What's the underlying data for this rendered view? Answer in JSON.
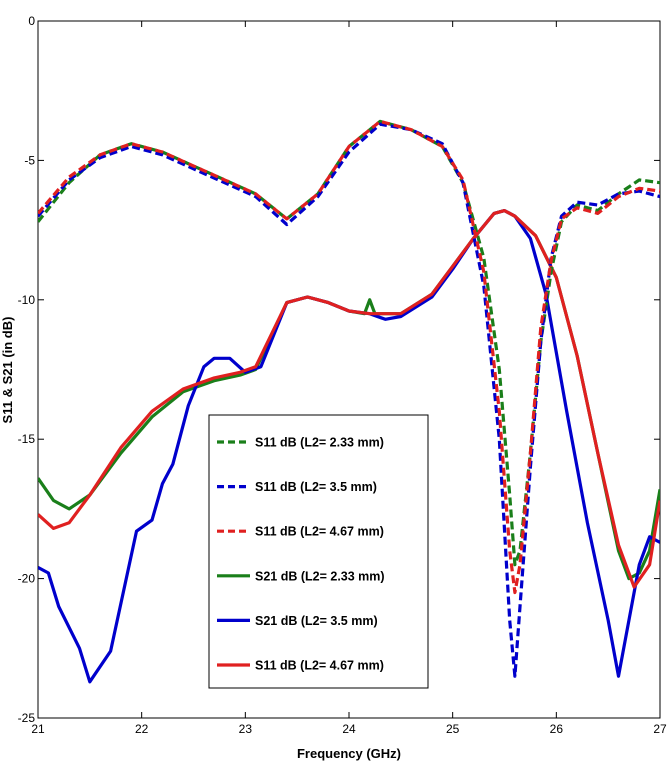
{
  "chart_data": {
    "type": "line",
    "title": "",
    "xlabel": "Frequency (GHz)",
    "ylabel": "S11 & S21 (in dB)",
    "xlim": [
      21,
      27
    ],
    "ylim": [
      -25,
      0
    ],
    "xticks": [
      21,
      22,
      23,
      24,
      25,
      26,
      27
    ],
    "yticks": [
      0,
      -5,
      -10,
      -15,
      -20,
      -25
    ],
    "grid": false,
    "legend_position": "lower-center",
    "series": [
      {
        "name": "S11 dB (L2= 2.33 mm)",
        "color": "#1a7f1a",
        "style": "dashed",
        "x": [
          21,
          21.3,
          21.6,
          21.9,
          22.2,
          22.5,
          22.8,
          23.1,
          23.4,
          23.7,
          24.0,
          24.3,
          24.6,
          24.9,
          25.1,
          25.3,
          25.45,
          25.55,
          25.6,
          25.65,
          25.75,
          25.85,
          25.95,
          26.05,
          26.2,
          26.4,
          26.6,
          26.8,
          27
        ],
        "y": [
          -7.2,
          -5.8,
          -4.8,
          -4.4,
          -4.7,
          -5.2,
          -5.7,
          -6.2,
          -7.1,
          -6.2,
          -4.5,
          -3.6,
          -3.9,
          -4.5,
          -5.8,
          -8.5,
          -12.5,
          -17.0,
          -19.5,
          -19.0,
          -15.5,
          -11.5,
          -9.0,
          -7.2,
          -6.6,
          -6.8,
          -6.2,
          -5.7,
          -5.8
        ]
      },
      {
        "name": "S11 dB (L2= 3.5 mm)",
        "color": "#0000cc",
        "style": "dashed",
        "x": [
          21,
          21.3,
          21.6,
          21.9,
          22.2,
          22.5,
          22.8,
          23.1,
          23.4,
          23.7,
          24.0,
          24.3,
          24.6,
          24.9,
          25.1,
          25.3,
          25.45,
          25.55,
          25.6,
          25.65,
          25.75,
          25.85,
          25.95,
          26.05,
          26.2,
          26.4,
          26.6,
          26.8,
          27
        ],
        "y": [
          -7.0,
          -5.7,
          -4.9,
          -4.5,
          -4.8,
          -5.3,
          -5.8,
          -6.3,
          -7.3,
          -6.3,
          -4.7,
          -3.7,
          -3.9,
          -4.4,
          -5.8,
          -9.5,
          -15.0,
          -21.5,
          -23.5,
          -21.0,
          -16.0,
          -11.5,
          -8.5,
          -7.0,
          -6.5,
          -6.6,
          -6.2,
          -6.1,
          -6.3
        ]
      },
      {
        "name": "S11 dB (L2= 4.67 mm)",
        "color": "#e02020",
        "style": "dashed",
        "x": [
          21,
          21.3,
          21.6,
          21.9,
          22.2,
          22.5,
          22.8,
          23.1,
          23.4,
          23.7,
          24.0,
          24.3,
          24.6,
          24.9,
          25.1,
          25.3,
          25.45,
          25.55,
          25.6,
          25.65,
          25.75,
          25.85,
          25.95,
          26.05,
          26.2,
          26.4,
          26.6,
          26.8,
          27
        ],
        "y": [
          -6.9,
          -5.6,
          -4.8,
          -4.4,
          -4.7,
          -5.2,
          -5.7,
          -6.2,
          -7.1,
          -6.2,
          -4.5,
          -3.6,
          -3.9,
          -4.5,
          -5.7,
          -9.0,
          -14.0,
          -19.0,
          -20.5,
          -19.5,
          -15.5,
          -11.0,
          -8.6,
          -7.1,
          -6.7,
          -6.9,
          -6.3,
          -6.0,
          -6.1
        ]
      },
      {
        "name": "S21 dB (L2= 2.33 mm)",
        "color": "#1a7f1a",
        "style": "solid",
        "x": [
          21,
          21.15,
          21.3,
          21.5,
          21.8,
          22.1,
          22.4,
          22.7,
          22.95,
          23.1,
          23.4,
          23.6,
          23.8,
          24.0,
          24.15,
          24.2,
          24.25,
          24.5,
          24.8,
          25.0,
          25.2,
          25.4,
          25.5,
          25.6,
          25.8,
          26.0,
          26.2,
          26.4,
          26.6,
          26.7,
          26.8,
          26.9,
          27
        ],
        "y": [
          -16.4,
          -17.2,
          -17.5,
          -17.0,
          -15.5,
          -14.2,
          -13.3,
          -12.9,
          -12.7,
          -12.5,
          -10.1,
          -9.9,
          -10.1,
          -10.4,
          -10.5,
          -10.0,
          -10.5,
          -10.5,
          -9.8,
          -8.8,
          -7.8,
          -6.9,
          -6.8,
          -7.0,
          -7.7,
          -9.2,
          -12.0,
          -15.5,
          -19.0,
          -20.0,
          -19.8,
          -19.0,
          -16.8
        ]
      },
      {
        "name": "S21 dB (L2= 3.5 mm)",
        "color": "#0000cc",
        "style": "solid",
        "x": [
          21,
          21.1,
          21.2,
          21.4,
          21.5,
          21.7,
          21.95,
          22.1,
          22.2,
          22.3,
          22.45,
          22.6,
          22.7,
          22.85,
          23.0,
          23.15,
          23.4,
          23.6,
          23.8,
          24.0,
          24.2,
          24.35,
          24.5,
          24.8,
          25.0,
          25.2,
          25.4,
          25.5,
          25.6,
          25.75,
          25.9,
          26.1,
          26.3,
          26.5,
          26.6,
          26.7,
          26.8,
          26.9,
          27
        ],
        "y": [
          -19.6,
          -19.8,
          -21.0,
          -22.5,
          -23.7,
          -22.6,
          -18.3,
          -17.9,
          -16.6,
          -15.9,
          -13.8,
          -12.4,
          -12.1,
          -12.1,
          -12.6,
          -12.4,
          -10.1,
          -9.9,
          -10.1,
          -10.4,
          -10.5,
          -10.7,
          -10.6,
          -9.9,
          -8.9,
          -7.8,
          -6.9,
          -6.8,
          -7.0,
          -7.8,
          -9.8,
          -14.0,
          -18.0,
          -21.5,
          -23.5,
          -21.5,
          -19.5,
          -18.5,
          -18.7
        ]
      },
      {
        "name": "S11 dB (L2= 4.67 mm)",
        "color": "#e02020",
        "style": "solid",
        "x": [
          21,
          21.15,
          21.3,
          21.5,
          21.8,
          22.1,
          22.4,
          22.7,
          22.95,
          23.1,
          23.4,
          23.6,
          23.8,
          24.0,
          24.2,
          24.5,
          24.8,
          25.0,
          25.2,
          25.4,
          25.5,
          25.6,
          25.8,
          26.0,
          26.2,
          26.4,
          26.6,
          26.75,
          26.9,
          27
        ],
        "y": [
          -17.7,
          -18.2,
          -18.0,
          -17.0,
          -15.3,
          -14.0,
          -13.2,
          -12.8,
          -12.6,
          -12.4,
          -10.1,
          -9.9,
          -10.1,
          -10.4,
          -10.5,
          -10.5,
          -9.8,
          -8.8,
          -7.8,
          -6.9,
          -6.8,
          -7.0,
          -7.7,
          -9.2,
          -12.0,
          -15.5,
          -18.8,
          -20.3,
          -19.5,
          -17.2
        ]
      }
    ]
  }
}
